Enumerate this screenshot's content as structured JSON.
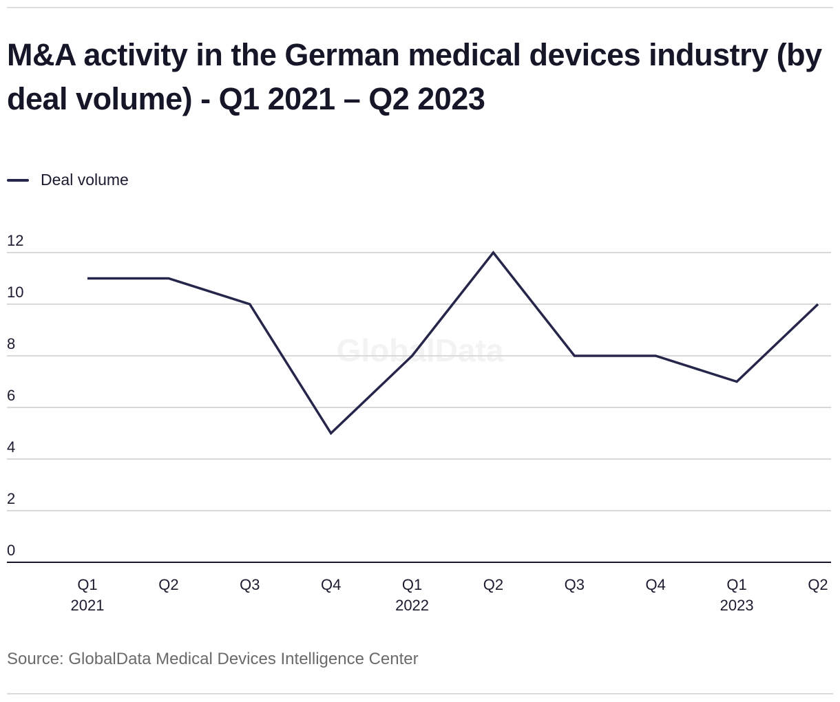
{
  "title": "M&A activity in the German medical devices industry (by deal volume) - Q1 2021 – Q2 2023",
  "legend": {
    "label": "Deal volume",
    "color": "#25264a"
  },
  "source": "Source: GlobalData Medical Devices Intelligence Center",
  "watermark": "GlobalData",
  "chart_data": {
    "type": "line",
    "title": "M&A activity in the German medical devices industry (by deal volume) - Q1 2021 – Q2 2023",
    "xlabel": "",
    "ylabel": "",
    "categories": [
      "Q1 2021",
      "Q2 2021",
      "Q3 2021",
      "Q4 2021",
      "Q1 2022",
      "Q2 2022",
      "Q3 2022",
      "Q4 2022",
      "Q1 2023",
      "Q2 2023"
    ],
    "x_tick_labels": [
      [
        "Q1",
        "2021"
      ],
      [
        "Q2",
        ""
      ],
      [
        "Q3",
        ""
      ],
      [
        "Q4",
        ""
      ],
      [
        "Q1",
        "2022"
      ],
      [
        "Q2",
        ""
      ],
      [
        "Q3",
        ""
      ],
      [
        "Q4",
        ""
      ],
      [
        "Q1",
        "2023"
      ],
      [
        "Q2",
        ""
      ]
    ],
    "series": [
      {
        "name": "Deal volume",
        "color": "#25264a",
        "values": [
          11,
          11,
          10,
          5,
          8,
          12,
          8,
          8,
          7,
          10
        ]
      }
    ],
    "ylim": [
      0,
      12
    ],
    "yticks": [
      0,
      2,
      4,
      6,
      8,
      10,
      12
    ],
    "grid": true,
    "legend_position": "top-left"
  }
}
